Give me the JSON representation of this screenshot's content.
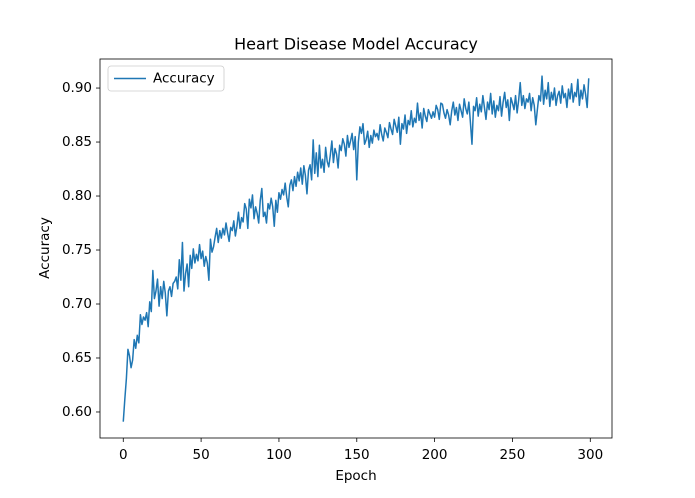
{
  "chart_data": {
    "type": "line",
    "title": "Heart Disease Model Accuracy",
    "xlabel": "Epoch",
    "ylabel": "Accuracy",
    "x": [
      0,
      1,
      2,
      3,
      4,
      5,
      6,
      7,
      8,
      9,
      10,
      11,
      12,
      13,
      14,
      15,
      16,
      17,
      18,
      19,
      20,
      21,
      22,
      23,
      24,
      25,
      26,
      27,
      28,
      29,
      30,
      31,
      32,
      33,
      34,
      35,
      36,
      37,
      38,
      39,
      40,
      41,
      42,
      43,
      44,
      45,
      46,
      47,
      48,
      49,
      50,
      51,
      52,
      53,
      54,
      55,
      56,
      57,
      58,
      59,
      60,
      61,
      62,
      63,
      64,
      65,
      66,
      67,
      68,
      69,
      70,
      71,
      72,
      73,
      74,
      75,
      76,
      77,
      78,
      79,
      80,
      81,
      82,
      83,
      84,
      85,
      86,
      87,
      88,
      89,
      90,
      91,
      92,
      93,
      94,
      95,
      96,
      97,
      98,
      99,
      100,
      101,
      102,
      103,
      104,
      105,
      106,
      107,
      108,
      109,
      110,
      111,
      112,
      113,
      114,
      115,
      116,
      117,
      118,
      119,
      120,
      121,
      122,
      123,
      124,
      125,
      126,
      127,
      128,
      129,
      130,
      131,
      132,
      133,
      134,
      135,
      136,
      137,
      138,
      139,
      140,
      141,
      142,
      143,
      144,
      145,
      146,
      147,
      148,
      149,
      150,
      151,
      152,
      153,
      154,
      155,
      156,
      157,
      158,
      159,
      160,
      161,
      162,
      163,
      164,
      165,
      166,
      167,
      168,
      169,
      170,
      171,
      172,
      173,
      174,
      175,
      176,
      177,
      178,
      179,
      180,
      181,
      182,
      183,
      184,
      185,
      186,
      187,
      188,
      189,
      190,
      191,
      192,
      193,
      194,
      195,
      196,
      197,
      198,
      199,
      200,
      201,
      202,
      203,
      204,
      205,
      206,
      207,
      208,
      209,
      210,
      211,
      212,
      213,
      214,
      215,
      216,
      217,
      218,
      219,
      220,
      221,
      222,
      223,
      224,
      225,
      226,
      227,
      228,
      229,
      230,
      231,
      232,
      233,
      234,
      235,
      236,
      237,
      238,
      239,
      240,
      241,
      242,
      243,
      244,
      245,
      246,
      247,
      248,
      249,
      250,
      251,
      252,
      253,
      254,
      255,
      256,
      257,
      258,
      259,
      260,
      261,
      262,
      263,
      264,
      265,
      266,
      267,
      268,
      269,
      270,
      271,
      272,
      273,
      274,
      275,
      276,
      277,
      278,
      279,
      280,
      281,
      282,
      283,
      284,
      285,
      286,
      287,
      288,
      289,
      290,
      291,
      292,
      293,
      294,
      295,
      296,
      297,
      298,
      299
    ],
    "series": [
      {
        "name": "Accuracy",
        "color": "#1f77b4",
        "values": [
          0.591,
          0.612,
          0.631,
          0.658,
          0.652,
          0.641,
          0.648,
          0.667,
          0.659,
          0.671,
          0.664,
          0.69,
          0.681,
          0.688,
          0.685,
          0.692,
          0.679,
          0.702,
          0.693,
          0.731,
          0.705,
          0.712,
          0.723,
          0.698,
          0.716,
          0.705,
          0.721,
          0.71,
          0.689,
          0.712,
          0.716,
          0.707,
          0.719,
          0.721,
          0.725,
          0.714,
          0.741,
          0.722,
          0.757,
          0.712,
          0.728,
          0.737,
          0.716,
          0.745,
          0.733,
          0.751,
          0.738,
          0.746,
          0.74,
          0.755,
          0.742,
          0.749,
          0.735,
          0.744,
          0.738,
          0.722,
          0.76,
          0.748,
          0.753,
          0.762,
          0.77,
          0.757,
          0.768,
          0.761,
          0.77,
          0.764,
          0.775,
          0.766,
          0.758,
          0.771,
          0.768,
          0.777,
          0.763,
          0.772,
          0.785,
          0.77,
          0.78,
          0.776,
          0.793,
          0.788,
          0.77,
          0.797,
          0.789,
          0.801,
          0.779,
          0.79,
          0.784,
          0.775,
          0.796,
          0.807,
          0.781,
          0.785,
          0.775,
          0.793,
          0.788,
          0.798,
          0.79,
          0.772,
          0.796,
          0.785,
          0.803,
          0.797,
          0.806,
          0.801,
          0.812,
          0.799,
          0.79,
          0.81,
          0.815,
          0.805,
          0.818,
          0.809,
          0.822,
          0.814,
          0.826,
          0.811,
          0.828,
          0.819,
          0.802,
          0.824,
          0.829,
          0.815,
          0.852,
          0.821,
          0.84,
          0.818,
          0.847,
          0.826,
          0.834,
          0.822,
          0.845,
          0.832,
          0.827,
          0.838,
          0.851,
          0.831,
          0.844,
          0.839,
          0.826,
          0.847,
          0.842,
          0.853,
          0.848,
          0.837,
          0.856,
          0.845,
          0.851,
          0.858,
          0.843,
          0.855,
          0.815,
          0.85,
          0.864,
          0.858,
          0.867,
          0.848,
          0.852,
          0.86,
          0.845,
          0.856,
          0.849,
          0.861,
          0.855,
          0.858,
          0.852,
          0.866,
          0.857,
          0.851,
          0.863,
          0.859,
          0.854,
          0.868,
          0.862,
          0.857,
          0.871,
          0.865,
          0.859,
          0.873,
          0.848,
          0.867,
          0.862,
          0.875,
          0.858,
          0.87,
          0.866,
          0.879,
          0.864,
          0.872,
          0.868,
          0.886,
          0.87,
          0.877,
          0.863,
          0.881,
          0.874,
          0.869,
          0.88,
          0.876,
          0.872,
          0.878,
          0.873,
          0.884,
          0.88,
          0.871,
          0.886,
          0.885,
          0.877,
          0.872,
          0.88,
          0.875,
          0.866,
          0.879,
          0.887,
          0.875,
          0.882,
          0.87,
          0.885,
          0.879,
          0.873,
          0.89,
          0.881,
          0.876,
          0.887,
          0.868,
          0.848,
          0.883,
          0.879,
          0.891,
          0.874,
          0.885,
          0.878,
          0.893,
          0.882,
          0.871,
          0.887,
          0.88,
          0.895,
          0.876,
          0.888,
          0.873,
          0.884,
          0.879,
          0.892,
          0.874,
          0.887,
          0.896,
          0.882,
          0.889,
          0.87,
          0.891,
          0.886,
          0.88,
          0.893,
          0.877,
          0.889,
          0.905,
          0.884,
          0.893,
          0.881,
          0.89,
          0.887,
          0.895,
          0.879,
          0.891,
          0.884,
          0.866,
          0.88,
          0.893,
          0.888,
          0.911,
          0.885,
          0.898,
          0.89,
          0.905,
          0.883,
          0.896,
          0.889,
          0.9,
          0.884,
          0.893,
          0.897,
          0.886,
          0.902,
          0.891,
          0.895,
          0.882,
          0.899,
          0.89,
          0.904,
          0.887,
          0.896,
          0.892,
          0.908,
          0.884,
          0.898,
          0.89,
          0.903,
          0.894,
          0.882,
          0.909
        ]
      }
    ],
    "xlim": [
      -14.95,
      313.95
    ],
    "ylim": [
      0.5759,
      0.9269
    ],
    "xticks": [
      0,
      50,
      100,
      150,
      200,
      250,
      300
    ],
    "yticks": [
      {
        "value": 0.6,
        "label": "0.60"
      },
      {
        "value": 0.65,
        "label": "0.65"
      },
      {
        "value": 0.7,
        "label": "0.70"
      },
      {
        "value": 0.75,
        "label": "0.75"
      },
      {
        "value": 0.8,
        "label": "0.80"
      },
      {
        "value": 0.85,
        "label": "0.85"
      },
      {
        "value": 0.9,
        "label": "0.90"
      }
    ],
    "legend": "upper left",
    "grid": false
  }
}
